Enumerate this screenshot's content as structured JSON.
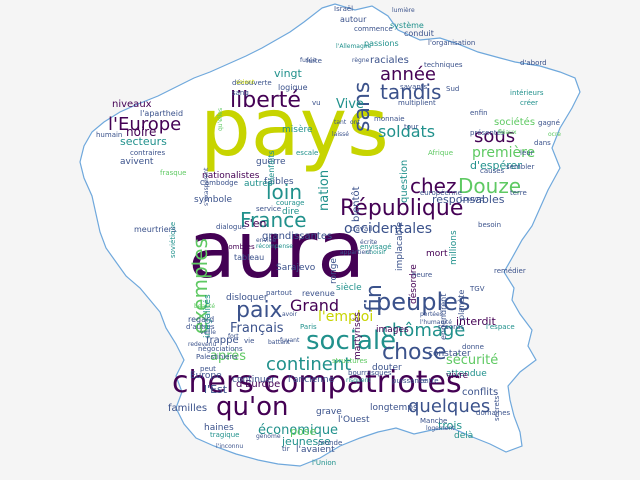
{
  "canvas": {
    "background": "#f5f5f5",
    "outline_color": "#6fa8dc"
  },
  "palette": {
    "dark": "#440154",
    "indigo": "#3b528b",
    "teal": "#21918c",
    "green": "#5ec962",
    "yellow": "#c7d400"
  },
  "words": [
    {
      "text": "pays",
      "color": "yellow"
    },
    {
      "text": "aura",
      "color": "dark"
    },
    {
      "text": "chers compatriotes",
      "color": "dark"
    },
    {
      "text": "République",
      "color": "dark"
    },
    {
      "text": "qu'on",
      "color": "dark"
    },
    {
      "text": "sociale",
      "color": "teal"
    },
    {
      "text": "peuples",
      "color": "indigo"
    },
    {
      "text": "France",
      "color": "teal"
    },
    {
      "text": "paix",
      "color": "indigo"
    },
    {
      "text": "liberté",
      "color": "dark"
    },
    {
      "text": "chose",
      "color": "indigo"
    },
    {
      "text": "continent",
      "color": "teal"
    },
    {
      "text": "chômage",
      "color": "teal"
    },
    {
      "text": "quelques",
      "color": "indigo"
    },
    {
      "text": "chez",
      "color": "dark"
    },
    {
      "text": "Douze",
      "color": "green"
    },
    {
      "text": "l'Europe",
      "color": "dark"
    },
    {
      "text": "tandis",
      "color": "indigo"
    },
    {
      "text": "année",
      "color": "dark"
    },
    {
      "text": "sans",
      "color": "indigo"
    },
    {
      "text": "Grand",
      "color": "dark"
    },
    {
      "text": "fin",
      "color": "indigo"
    },
    {
      "text": "loin",
      "color": "teal"
    },
    {
      "text": "exemples",
      "color": "green"
    },
    {
      "text": "soldats",
      "color": "teal"
    },
    {
      "text": "sous",
      "color": "dark"
    },
    {
      "text": "première",
      "color": "green"
    },
    {
      "text": "occidentales",
      "color": "indigo"
    },
    {
      "text": "l'emploi",
      "color": "yellow"
    },
    {
      "text": "Français",
      "color": "indigo"
    },
    {
      "text": "économique",
      "color": "teal"
    },
    {
      "text": "sécurité",
      "color": "green"
    },
    {
      "text": "Vive",
      "color": "teal"
    },
    {
      "text": "nation",
      "color": "teal"
    },
    {
      "text": "d'espérer",
      "color": "teal"
    },
    {
      "text": "responsables",
      "color": "indigo"
    },
    {
      "text": "sociétés",
      "color": "green"
    },
    {
      "text": "après",
      "color": "green"
    },
    {
      "text": "noire",
      "color": "dark"
    },
    {
      "text": "secteurs",
      "color": "teal"
    },
    {
      "text": "l'Est",
      "color": "indigo"
    },
    {
      "text": "trois",
      "color": "teal"
    },
    {
      "text": "familles",
      "color": "indigo"
    },
    {
      "text": "jeunesse",
      "color": "teal"
    },
    {
      "text": "frappe",
      "color": "indigo"
    },
    {
      "text": "interdit",
      "color": "dark"
    },
    {
      "text": "vingt",
      "color": "teal"
    },
    {
      "text": "raciales",
      "color": "indigo"
    },
    {
      "text": "niveaux",
      "color": "dark"
    },
    {
      "text": "nationalistes",
      "color": "dark"
    },
    {
      "text": "misère",
      "color": "teal"
    },
    {
      "text": "guerre",
      "color": "indigo"
    },
    {
      "text": "grandissantes",
      "color": "indigo"
    },
    {
      "text": "symbole",
      "color": "indigo"
    },
    {
      "text": "Sarajevo",
      "color": "indigo"
    },
    {
      "text": "bientôt",
      "color": "indigo"
    },
    {
      "text": "question",
      "color": "teal"
    },
    {
      "text": "d'Europe",
      "color": "dark"
    },
    {
      "text": "conflits",
      "color": "indigo"
    },
    {
      "text": "attendue",
      "color": "teal"
    },
    {
      "text": "constater",
      "color": "indigo"
    },
    {
      "text": "grave",
      "color": "indigo"
    },
    {
      "text": "haines",
      "color": "indigo"
    },
    {
      "text": "longtemps",
      "color": "indigo"
    },
    {
      "text": "Europe",
      "color": "indigo"
    },
    {
      "text": "d'autres",
      "color": "indigo"
    },
    {
      "text": "l'avaient",
      "color": "indigo"
    },
    {
      "text": "continuer",
      "color": "indigo"
    },
    {
      "text": "l'ancienne",
      "color": "indigo"
    },
    {
      "text": "images",
      "color": "dark"
    },
    {
      "text": "millions",
      "color": "teal"
    },
    {
      "text": "mort",
      "color": "dark"
    },
    {
      "text": "désordre",
      "color": "dark"
    },
    {
      "text": "siècle",
      "color": "teal"
    },
    {
      "text": "ronge",
      "color": "indigo"
    },
    {
      "text": "martyrisés",
      "color": "dark"
    },
    {
      "text": "disloquer",
      "color": "indigo"
    },
    {
      "text": "tableau",
      "color": "indigo"
    },
    {
      "text": "inégalités",
      "color": "teal"
    },
    {
      "text": "avivent",
      "color": "indigo"
    },
    {
      "text": "l'apartheid",
      "color": "indigo"
    },
    {
      "text": "autour",
      "color": "indigo"
    },
    {
      "text": "passions",
      "color": "teal"
    },
    {
      "text": "logique",
      "color": "indigo"
    },
    {
      "text": "conduit",
      "color": "indigo"
    },
    {
      "text": "système",
      "color": "teal"
    },
    {
      "text": "Israël",
      "color": "indigo"
    },
    {
      "text": "commence",
      "color": "indigo"
    },
    {
      "text": "découverte",
      "color": "indigo"
    },
    {
      "text": "sang",
      "color": "indigo"
    },
    {
      "text": "faibles",
      "color": "indigo"
    },
    {
      "text": "Cambodge",
      "color": "indigo"
    },
    {
      "text": "d'ombres",
      "color": "dark"
    },
    {
      "text": "autres",
      "color": "teal"
    },
    {
      "text": "s'en",
      "color": "dark"
    },
    {
      "text": "implacable",
      "color": "indigo"
    },
    {
      "text": "Afrique",
      "color": "green"
    },
    {
      "text": "Palestiniens",
      "color": "indigo"
    },
    {
      "text": "négociations",
      "color": "indigo"
    },
    {
      "text": "l'Ouest",
      "color": "indigo"
    },
    {
      "text": "Sud",
      "color": "indigo"
    },
    {
      "text": "présentes",
      "color": "indigo"
    },
    {
      "text": "dialogue",
      "color": "indigo"
    },
    {
      "text": "courage",
      "color": "teal"
    },
    {
      "text": "service",
      "color": "indigo"
    },
    {
      "text": "dire",
      "color": "teal"
    },
    {
      "text": "l'Union",
      "color": "teal"
    },
    {
      "text": "pose",
      "color": "green"
    },
    {
      "text": "delà",
      "color": "teal"
    },
    {
      "text": "vivre",
      "color": "dark"
    },
    {
      "text": "planète",
      "color": "indigo"
    },
    {
      "text": "engendrent",
      "color": "indigo"
    },
    {
      "text": "records",
      "color": "indigo"
    },
    {
      "text": "l'espace",
      "color": "teal"
    },
    {
      "text": "donne",
      "color": "indigo"
    },
    {
      "text": "structures",
      "color": "green"
    },
    {
      "text": "revenue",
      "color": "indigo"
    },
    {
      "text": "Paris",
      "color": "teal"
    },
    {
      "text": "regard",
      "color": "indigo"
    },
    {
      "text": "Manche",
      "color": "indigo"
    },
    {
      "text": "monde",
      "color": "indigo"
    },
    {
      "text": "puissance",
      "color": "indigo"
    },
    {
      "text": "entre",
      "color": "indigo"
    },
    {
      "text": "douter",
      "color": "indigo"
    },
    {
      "text": "heure",
      "color": "indigo"
    },
    {
      "text": "partout",
      "color": "indigo"
    },
    {
      "text": "tir",
      "color": "indigo"
    },
    {
      "text": "bourrasques",
      "color": "indigo"
    },
    {
      "text": "bienfaits",
      "color": "teal"
    },
    {
      "text": "escale",
      "color": "teal"
    },
    {
      "text": "frasque",
      "color": "green"
    },
    {
      "text": "soviétique",
      "color": "teal"
    },
    {
      "text": "meurtriers",
      "color": "indigo"
    },
    {
      "text": "contraires",
      "color": "indigo"
    },
    {
      "text": "humain",
      "color": "indigo"
    },
    {
      "text": "fuite",
      "color": "indigo"
    },
    {
      "text": "monnaie",
      "color": "indigo"
    },
    {
      "text": "savants",
      "color": "indigo"
    },
    {
      "text": "multiplient",
      "color": "indigo"
    },
    {
      "text": "tour",
      "color": "indigo"
    },
    {
      "text": "enfin",
      "color": "indigo"
    },
    {
      "text": "Louvre",
      "color": "indigo"
    },
    {
      "text": "européenne",
      "color": "indigo"
    },
    {
      "text": "besoin",
      "color": "indigo"
    },
    {
      "text": "sembler",
      "color": "indigo"
    },
    {
      "text": "intérieurs",
      "color": "teal"
    },
    {
      "text": "d'abord",
      "color": "indigo"
    },
    {
      "text": "techniques",
      "color": "indigo"
    },
    {
      "text": "l'organisation",
      "color": "indigo"
    },
    {
      "text": "créer",
      "color": "teal"
    },
    {
      "text": "terre",
      "color": "indigo"
    },
    {
      "text": "dans",
      "color": "indigo"
    },
    {
      "text": "causes",
      "color": "indigo"
    },
    {
      "text": "gagné",
      "color": "indigo"
    },
    {
      "text": "leur",
      "color": "indigo"
    },
    {
      "text": "vu",
      "color": "indigo"
    },
    {
      "text": "travail",
      "color": "indigo"
    },
    {
      "text": "envisagé",
      "color": "teal"
    },
    {
      "text": "TGV",
      "color": "indigo"
    },
    {
      "text": "remédier",
      "color": "indigo"
    },
    {
      "text": "domaines",
      "color": "indigo"
    },
    {
      "text": "secrets",
      "color": "indigo"
    },
    {
      "text": "vie",
      "color": "indigo"
    },
    {
      "text": "peut",
      "color": "indigo"
    },
    {
      "text": "tragique",
      "color": "teal"
    },
    {
      "text": "fusée",
      "color": "indigo"
    },
    {
      "text": "fuyant",
      "color": "indigo"
    },
    {
      "text": "avoir",
      "color": "indigo"
    },
    {
      "text": "battant",
      "color": "indigo"
    },
    {
      "text": "beauté",
      "color": "green"
    },
    {
      "text": "veille",
      "color": "indigo"
    },
    {
      "text": "fort",
      "color": "indigo"
    },
    {
      "text": "risquent",
      "color": "teal"
    },
    {
      "text": "s'exaspèrent",
      "color": "indigo"
    },
    {
      "text": "génome",
      "color": "indigo"
    },
    {
      "text": "l'inconnu",
      "color": "indigo"
    },
    {
      "text": "fléaux",
      "color": "green"
    },
    {
      "text": "redevenu",
      "color": "indigo"
    },
    {
      "text": "portées",
      "color": "indigo"
    },
    {
      "text": "écrite",
      "color": "indigo"
    },
    {
      "text": "ocre",
      "color": "green"
    },
    {
      "text": "choisir",
      "color": "teal"
    },
    {
      "text": "appartient",
      "color": "indigo"
    },
    {
      "text": "soient",
      "color": "yellow"
    },
    {
      "text": "qu'elles",
      "color": "green"
    },
    {
      "text": "lumière",
      "color": "indigo"
    },
    {
      "text": "l'humanité",
      "color": "indigo"
    },
    {
      "text": "l'Allemagne",
      "color": "teal"
    },
    {
      "text": "règne",
      "color": "indigo"
    },
    {
      "text": "récompense",
      "color": "teal"
    },
    {
      "text": "enviée",
      "color": "indigo"
    },
    {
      "text": "tant",
      "color": "indigo"
    },
    {
      "text": "ont",
      "color": "indigo"
    },
    {
      "text": "laissé",
      "color": "indigo"
    },
    {
      "text": "logement",
      "color": "indigo"
    }
  ]
}
